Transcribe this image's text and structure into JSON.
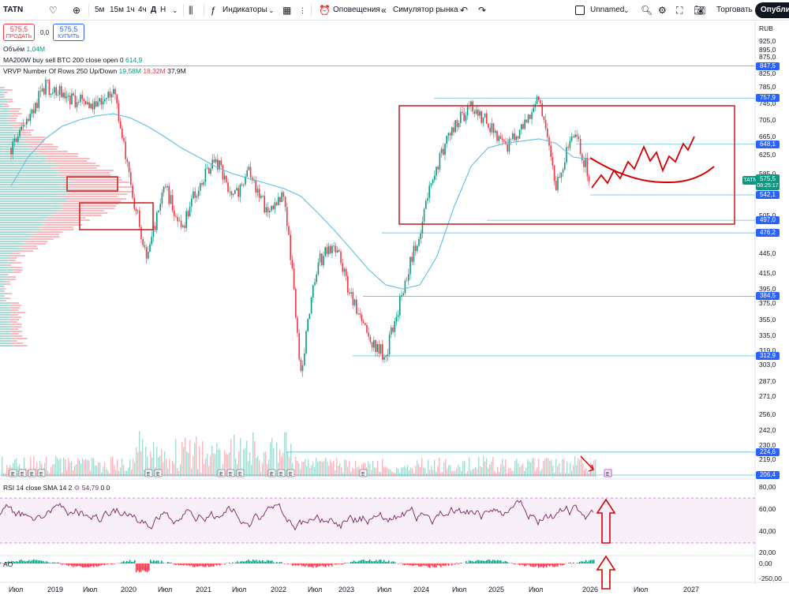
{
  "toolbar": {
    "symbol": "TATN",
    "intervals": [
      "5м",
      "15м",
      "1ч",
      "4ч",
      "Д",
      "Н"
    ],
    "indicators_label": "Индикаторы",
    "alerts_label": "Оповещения",
    "replay_label": "Симулятор рынка",
    "layout_name": "Unnamed",
    "trade_label": "Торговать",
    "publish_label": "Опубликовать"
  },
  "order_panel": {
    "sell_price": "575,5",
    "sell_label": "ПРОДАТЬ",
    "spread": "0,0",
    "buy_price": "575,5",
    "buy_label": "КУПИТЬ"
  },
  "legend": {
    "volume_label": "Объём",
    "volume_value": "1,04M",
    "ma_label": "MA200W buy sell BTC 200 close open 0",
    "ma_value": "614,9",
    "vrvp_label": "VRVP Number Of Rows 250 Up/Down",
    "vrvp_up": "19,58M",
    "vrvp_down": "18,32M",
    "vrvp_total": "37,9M",
    "rsi_label": "RSI 14 close SMA 14 2",
    "rsi_value": "54,79",
    "rsi_extra": "0 0",
    "ao_label": "AO"
  },
  "price_axis": {
    "currency": "RUB",
    "ticks": [
      "925,0",
      "895,0",
      "875,0",
      "825,0",
      "785,0",
      "745,0",
      "705,0",
      "665,0",
      "625,0",
      "585,0",
      "545,0",
      "505,0",
      "475,0",
      "445,0",
      "415,0",
      "395,0",
      "375,0",
      "355,0",
      "335,0",
      "319,0",
      "303,0",
      "287,0",
      "271,0",
      "256,0",
      "242,0",
      "230,0",
      "219,0"
    ],
    "level_labels": [
      "847,5",
      "757,9",
      "648,1",
      "542,1",
      "497,0",
      "476,2",
      "384,5",
      "312,9",
      "224,6",
      "206,4"
    ],
    "current_price": "575,5",
    "countdown": "08:25:17",
    "ticker_tag": "TATN"
  },
  "rsi_axis": {
    "ticks": [
      "80,00",
      "60,00",
      "40,00",
      "20,00"
    ]
  },
  "ao_axis": {
    "ticks": [
      "0,00",
      "-250,00"
    ]
  },
  "time_axis": {
    "labels": [
      "Июл",
      "2019",
      "Июл",
      "2020",
      "Июл",
      "2021",
      "Июл",
      "2022",
      "Июл",
      "2023",
      "Июл",
      "2024",
      "Июл",
      "2025",
      "Июл",
      "2026",
      "Июл",
      "2027"
    ]
  },
  "earnings_marker": "E",
  "colors": {
    "up": "#089981",
    "down": "#f23645",
    "ma": "#5bc0de",
    "level": "#2962ff",
    "box": "#c62828",
    "forecast": "#d50000",
    "rsi": "#7e1f5e",
    "rsi_band": "#f3e5f5"
  },
  "chart_data": {
    "type": "line",
    "title": "TATN",
    "xlabel": "",
    "ylabel": "RUB",
    "ylim": [
      206.4,
      925.0
    ],
    "x": [
      "2018-07",
      "2018-10",
      "2019-01",
      "2019-04",
      "2019-07",
      "2019-10",
      "2020-01",
      "2020-03",
      "2020-04",
      "2020-07",
      "2020-10",
      "2021-01",
      "2021-04",
      "2021-07",
      "2021-10",
      "2021-12",
      "2022-02",
      "2022-03",
      "2022-05",
      "2022-07",
      "2022-10",
      "2023-01",
      "2023-03",
      "2023-05",
      "2023-07",
      "2023-10",
      "2024-01",
      "2024-04",
      "2024-07",
      "2024-10",
      "2025-01",
      "2025-04",
      "2025-07",
      "2025-10",
      "2026-01"
    ],
    "series": [
      {
        "name": "",
        "values": [
          640,
          700,
          790,
          770,
          750,
          730,
          790,
          560,
          430,
          560,
          480,
          560,
          620,
          530,
          590,
          510,
          540,
          290,
          430,
          460,
          380,
          330,
          312.9,
          390,
          480,
          600,
          690,
          740,
          700,
          640,
          680,
          760,
          560,
          680,
          575.5
        ]
      },
      {
        "name": "MA200W",
        "values": [
          560,
          620,
          660,
          690,
          705,
          715,
          720,
          710,
          690,
          665,
          640,
          620,
          600,
          585,
          575,
          565,
          555,
          540,
          510,
          480,
          450,
          420,
          400,
          395,
          400,
          440,
          520,
          600,
          640,
          650,
          655,
          660,
          650,
          620,
          614.9
        ]
      }
    ],
    "levels": [
      847.5,
      757.9,
      648.1,
      542.1,
      497.0,
      476.2,
      384.5,
      312.9,
      224.6,
      206.4
    ],
    "last_price": 575.5
  }
}
